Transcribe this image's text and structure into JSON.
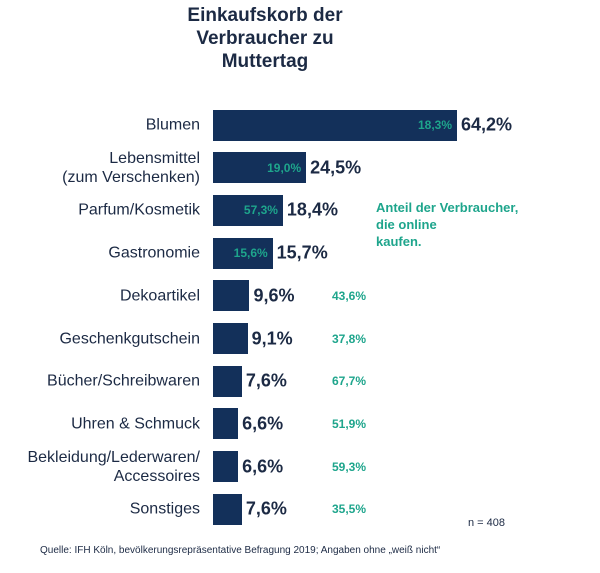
{
  "chart_data": {
    "type": "bar",
    "title": "Einkaufskorb der\nVerbraucher zu\nMuttertag",
    "categories": [
      "Blumen",
      "Lebensmittel\n(zum Verschenken)",
      "Parfum/Kosmetik",
      "Gastronomie",
      "Dekoartikel",
      "Geschenkgutschein",
      "Bücher/Schreibwaren",
      "Uhren & Schmuck",
      "Bekleidung/Lederwaren/\nAccessoires",
      "Sonstiges"
    ],
    "series": [
      {
        "name": "Einkaufskorb",
        "color": "#13305a",
        "values": [
          64.2,
          24.5,
          18.4,
          15.7,
          9.6,
          9.1,
          7.6,
          6.6,
          6.6,
          7.6
        ],
        "value_labels": [
          "64,2%",
          "24,5%",
          "18,4%",
          "15,7%",
          "9,6%",
          "9,1%",
          "7,6%",
          "6,6%",
          "6,6%",
          "7,6%"
        ]
      },
      {
        "name": "Anteil der Verbraucher,\ndie online\nkaufen.",
        "color": "#1ea58c",
        "values": [
          18.3,
          19.0,
          57.3,
          15.6,
          43.6,
          37.8,
          67.7,
          51.9,
          59.3,
          35.5
        ],
        "value_labels": [
          "18,3%",
          "19,0%",
          "57,3%",
          "15,6%",
          "43,6%",
          "37,8%",
          "67,7%",
          "51,9%",
          "59,3%",
          "35,5%"
        ]
      }
    ],
    "note": "n = 408",
    "source": "Quelle:  IFH  Köln,  bevölkerungsrepräsentative  Befragung 2019;  Angaben  ohne  „weiß nicht“"
  }
}
